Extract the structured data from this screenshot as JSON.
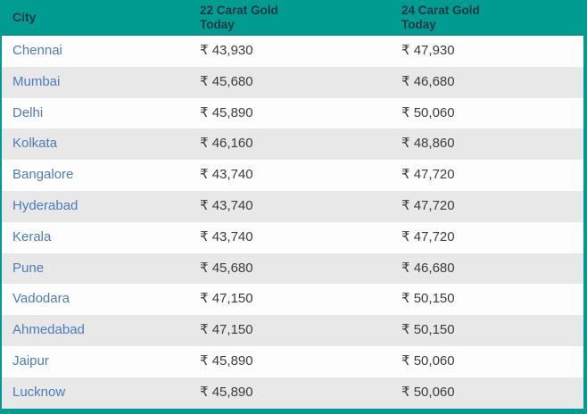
{
  "colors": {
    "accent_teal": "#009c91",
    "header_text": "#1e3545",
    "city_link_blue": "#4d7cb8",
    "value_text": "#3c3c3c",
    "row_alt_gray": "#e8e8e8",
    "row_white": "#fdfdfd"
  },
  "table": {
    "columns": [
      "City",
      "22 Carat Gold Today",
      "24 Carat Gold Today"
    ],
    "rows": [
      {
        "city": "Chennai",
        "price_22": "₹ 43,930",
        "price_24": "₹ 47,930"
      },
      {
        "city": "Mumbai",
        "price_22": "₹ 45,680",
        "price_24": "₹ 46,680"
      },
      {
        "city": "Delhi",
        "price_22": "₹ 45,890",
        "price_24": "₹ 50,060"
      },
      {
        "city": "Kolkata",
        "price_22": "₹ 46,160",
        "price_24": "₹ 48,860"
      },
      {
        "city": "Bangalore",
        "price_22": "₹ 43,740",
        "price_24": "₹ 47,720"
      },
      {
        "city": "Hyderabad",
        "price_22": "₹ 43,740",
        "price_24": "₹ 47,720"
      },
      {
        "city": "Kerala",
        "price_22": "₹ 43,740",
        "price_24": "₹ 47,720"
      },
      {
        "city": "Pune",
        "price_22": "₹ 45,680",
        "price_24": "₹ 46,680"
      },
      {
        "city": "Vadodara",
        "price_22": "₹ 47,150",
        "price_24": "₹ 50,150"
      },
      {
        "city": "Ahmedabad",
        "price_22": "₹ 47,150",
        "price_24": "₹ 50,150"
      },
      {
        "city": "Jaipur",
        "price_22": "₹ 45,890",
        "price_24": "₹ 50,060"
      },
      {
        "city": "Lucknow",
        "price_22": "₹ 45,890",
        "price_24": "₹ 50,060"
      }
    ]
  }
}
